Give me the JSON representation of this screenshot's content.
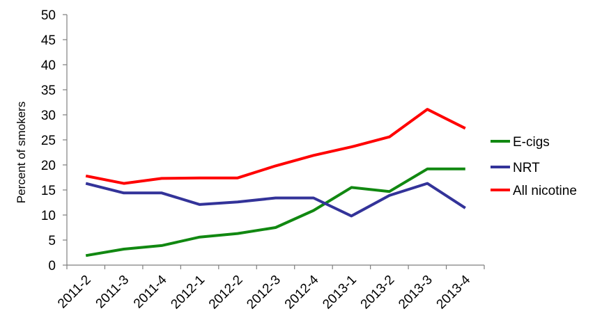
{
  "chart_data": {
    "type": "line",
    "title": "",
    "xlabel": "",
    "ylabel": "Percent of smokers",
    "ylim": [
      0,
      50
    ],
    "yticks": [
      "0",
      "5",
      "10",
      "15",
      "20",
      "25",
      "30",
      "35",
      "40",
      "45",
      "50"
    ],
    "grid": false,
    "legend_position": "right",
    "categories": [
      "2011-2",
      "2011-3",
      "2011-4",
      "2012-1",
      "2012-2",
      "2012-3",
      "2012-4",
      "2013-1",
      "2013-2",
      "2013-3",
      "2013-4"
    ],
    "series": [
      {
        "name": "E-cigs",
        "color": "#118811",
        "values": [
          1.9,
          3.2,
          3.9,
          5.6,
          6.3,
          7.5,
          10.9,
          15.5,
          14.7,
          19.2,
          19.2
        ]
      },
      {
        "name": "NRT",
        "color": "#333399",
        "values": [
          16.3,
          14.4,
          14.4,
          12.1,
          12.6,
          13.4,
          13.4,
          9.8,
          13.9,
          16.3,
          11.4
        ]
      },
      {
        "name": "All nicotine",
        "color": "#ff0000",
        "values": [
          17.8,
          16.3,
          17.3,
          17.4,
          17.4,
          19.8,
          21.9,
          23.6,
          25.6,
          31.1,
          27.3
        ]
      }
    ]
  }
}
